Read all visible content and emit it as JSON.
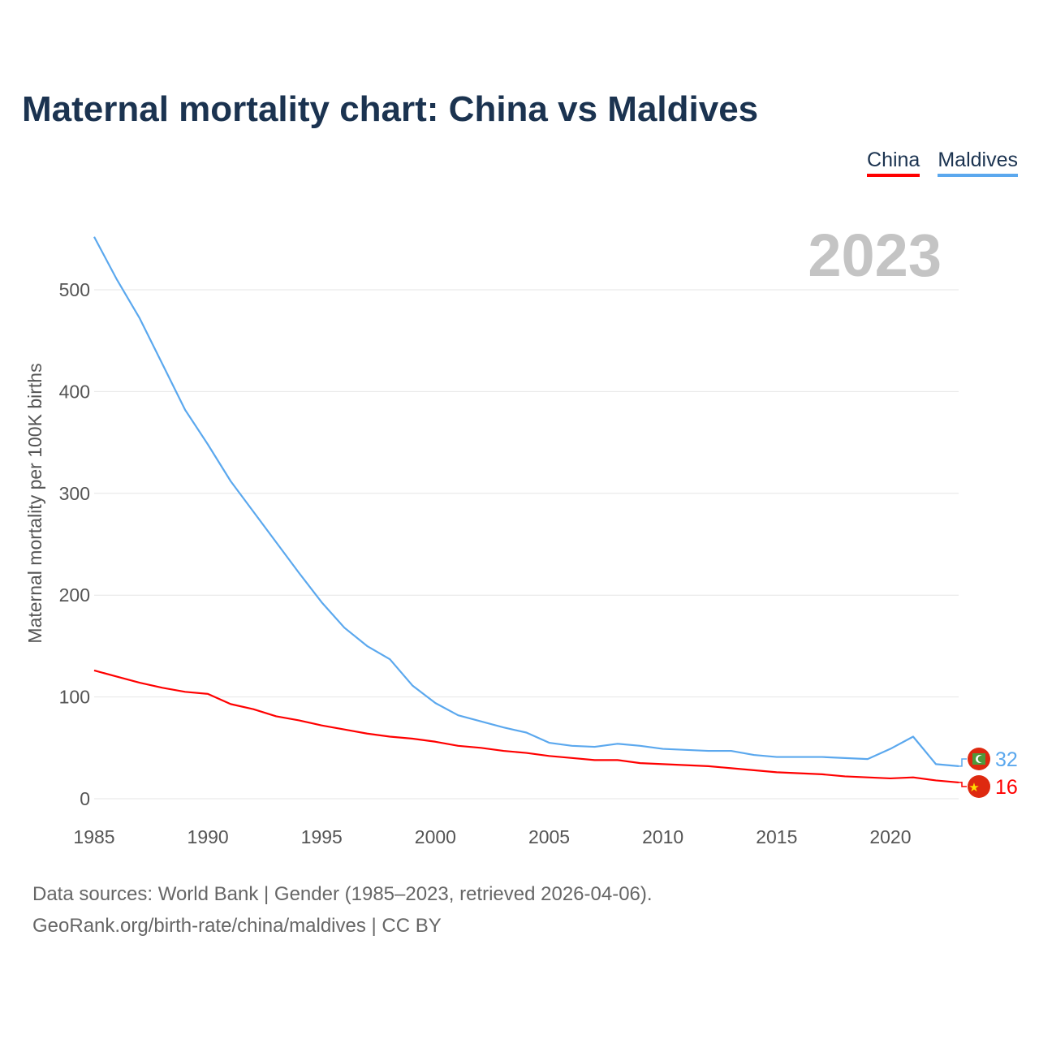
{
  "chart_data": {
    "type": "line",
    "title": "Maternal mortality chart: China vs Maldives",
    "ylabel": "Maternal mortality per 100K births",
    "xlabel": "",
    "year_label": "2023",
    "ylim": [
      0,
      560
    ],
    "xlim": [
      1985,
      2023
    ],
    "yticks": [
      "0",
      "100",
      "200",
      "300",
      "400",
      "500"
    ],
    "xticks": [
      "1985",
      "1990",
      "1995",
      "2000",
      "2005",
      "2010",
      "2015",
      "2020"
    ],
    "grid": true,
    "legend_position": "top-right",
    "x": [
      1985,
      1986,
      1987,
      1988,
      1989,
      1990,
      1991,
      1992,
      1993,
      1994,
      1995,
      1996,
      1997,
      1998,
      1999,
      2000,
      2001,
      2002,
      2003,
      2004,
      2005,
      2006,
      2007,
      2008,
      2009,
      2010,
      2011,
      2012,
      2013,
      2014,
      2015,
      2016,
      2017,
      2018,
      2019,
      2020,
      2021,
      2022,
      2023
    ],
    "series": [
      {
        "name": "China",
        "color": "#ff0000",
        "end_label": "16",
        "values": [
          126,
          120,
          114,
          109,
          105,
          103,
          93,
          88,
          81,
          77,
          72,
          68,
          64,
          61,
          59,
          56,
          52,
          50,
          47,
          45,
          42,
          40,
          38,
          38,
          35,
          34,
          33,
          32,
          30,
          28,
          26,
          25,
          24,
          22,
          21,
          20,
          21,
          18,
          16
        ]
      },
      {
        "name": "Maldives",
        "color": "#5ba8ee",
        "end_label": "32",
        "values": [
          552,
          510,
          472,
          427,
          382,
          348,
          312,
          282,
          252,
          222,
          193,
          168,
          150,
          137,
          111,
          94,
          82,
          76,
          70,
          65,
          55,
          52,
          51,
          54,
          52,
          49,
          48,
          47,
          47,
          43,
          41,
          41,
          41,
          40,
          39,
          49,
          61,
          34,
          32
        ]
      }
    ]
  },
  "footer": {
    "line1": "Data sources: World Bank | Gender (1985–2023, retrieved 2026-04-06).",
    "line2": "GeoRank.org/birth-rate/china/maldives | CC BY"
  }
}
